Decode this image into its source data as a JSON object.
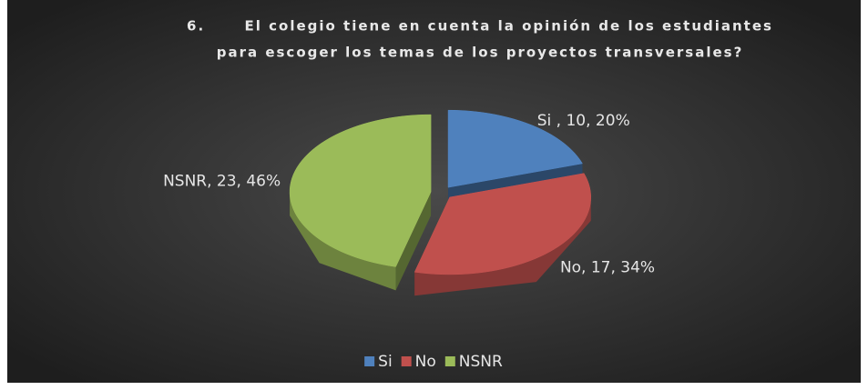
{
  "chart_data": {
    "type": "pie",
    "title": [
      "6.      El colegio tiene en cuenta la opinión de los estudiantes",
      "para escoger los temas de los proyectos transversales?"
    ],
    "categories": [
      "Si",
      "No",
      "NSNR"
    ],
    "values": [
      10,
      17,
      23
    ],
    "value_labels": [
      "Si , 10, 20%",
      "No, 17, 34%",
      "NSNR, 23, 46%"
    ],
    "colors": [
      "#4f81bd",
      "#c0504d",
      "#9bbb59"
    ],
    "legend": "bottom"
  }
}
